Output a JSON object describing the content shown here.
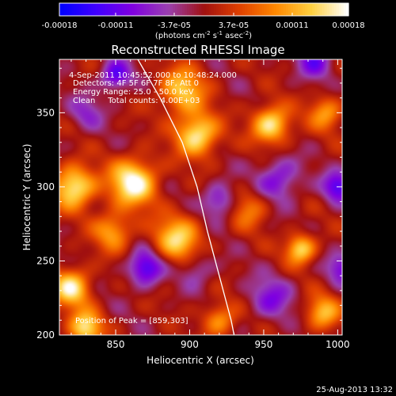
{
  "chart_data": {
    "type": "heatmap",
    "title": "Reconstructed RHESSI Image",
    "xlabel": "Heliocentric X (arcsec)",
    "ylabel": "Heliocentric Y (arcsec)",
    "xlim": [
      812,
      1003
    ],
    "ylim": [
      200,
      386
    ],
    "x_ticks": [
      850,
      900,
      950,
      1000
    ],
    "y_ticks": [
      200,
      250,
      300,
      350
    ],
    "colorbar": {
      "label_main": "(photons cm",
      "label_sup1": "-2",
      "label_mid1": " s",
      "label_sup2": "-1",
      "label_mid2": " asec",
      "label_sup3": "-2",
      "label_end": ")",
      "range": [
        -0.00018,
        0.00018
      ],
      "tick_values": [
        -0.00018,
        -0.00011,
        -3.7e-05,
        3.7e-05,
        0.00011,
        0.00018
      ],
      "tick_labels": [
        "-0.00018",
        "-0.00011",
        "-3.7e-05",
        "3.7e-05",
        "0.00011",
        "0.00018"
      ],
      "colormap": [
        "#0000ff",
        "#4000ff",
        "#8000e0",
        "#9a40b0",
        "#a01010",
        "#e04000",
        "#ff8800",
        "#ffd040",
        "#ffffff"
      ]
    },
    "annotations": [
      "4-Sep-2011 10:45:52.000 to 10:48:24.000",
      "Detectors: 4F 5F 6F 7F 8F, Att 0",
      "Energy Range: 25.0 - 50.0 keV",
      "Clean     Total counts: 4.00E+03"
    ],
    "peak_label": "Position of Peak = [859,303]",
    "peak": [
      859,
      303
    ],
    "limb_curve": [
      [
        865,
        386
      ],
      [
        880,
        360
      ],
      [
        895,
        330
      ],
      [
        905,
        300
      ],
      [
        912,
        270
      ],
      [
        920,
        240
      ],
      [
        928,
        210
      ],
      [
        930,
        200
      ]
    ],
    "blobs": [
      {
        "x": 862,
        "y": 303,
        "amp": 0.000185,
        "r": 11
      },
      {
        "x": 822,
        "y": 300,
        "amp": 0.00017,
        "r": 10
      },
      {
        "x": 905,
        "y": 335,
        "amp": 0.000165,
        "r": 10
      },
      {
        "x": 895,
        "y": 365,
        "amp": 0.00013,
        "r": 11
      },
      {
        "x": 955,
        "y": 342,
        "amp": 0.00016,
        "r": 9
      },
      {
        "x": 975,
        "y": 258,
        "amp": 0.00015,
        "r": 7
      },
      {
        "x": 820,
        "y": 232,
        "amp": 0.00016,
        "r": 9
      },
      {
        "x": 892,
        "y": 265,
        "amp": 0.00014,
        "r": 11
      },
      {
        "x": 830,
        "y": 205,
        "amp": 0.00015,
        "r": 8
      },
      {
        "x": 940,
        "y": 285,
        "amp": 8e-05,
        "r": 9
      },
      {
        "x": 990,
        "y": 215,
        "amp": 0.00012,
        "r": 8
      },
      {
        "x": 992,
        "y": 350,
        "amp": 0.0001,
        "r": 8
      },
      {
        "x": 848,
        "y": 270,
        "amp": 0.00011,
        "r": 9
      },
      {
        "x": 920,
        "y": 210,
        "amp": 0.0001,
        "r": 8
      },
      {
        "x": 955,
        "y": 225,
        "amp": -8e-05,
        "r": 10
      },
      {
        "x": 870,
        "y": 245,
        "amp": -0.00013,
        "r": 8
      },
      {
        "x": 960,
        "y": 305,
        "amp": -9e-05,
        "r": 10
      },
      {
        "x": 850,
        "y": 375,
        "amp": -0.00012,
        "r": 7
      },
      {
        "x": 1000,
        "y": 300,
        "amp": -0.00012,
        "r": 7
      },
      {
        "x": 920,
        "y": 290,
        "amp": -9e-05,
        "r": 8
      },
      {
        "x": 830,
        "y": 350,
        "amp": -6e-05,
        "r": 8
      },
      {
        "x": 985,
        "y": 385,
        "amp": -0.0001,
        "r": 8
      },
      {
        "x": 905,
        "y": 245,
        "amp": -6e-05,
        "r": 8
      },
      {
        "x": 1003,
        "y": 245,
        "amp": -9e-05,
        "r": 7
      }
    ]
  },
  "footer_timestamp": "25-Aug-2013 13:32"
}
